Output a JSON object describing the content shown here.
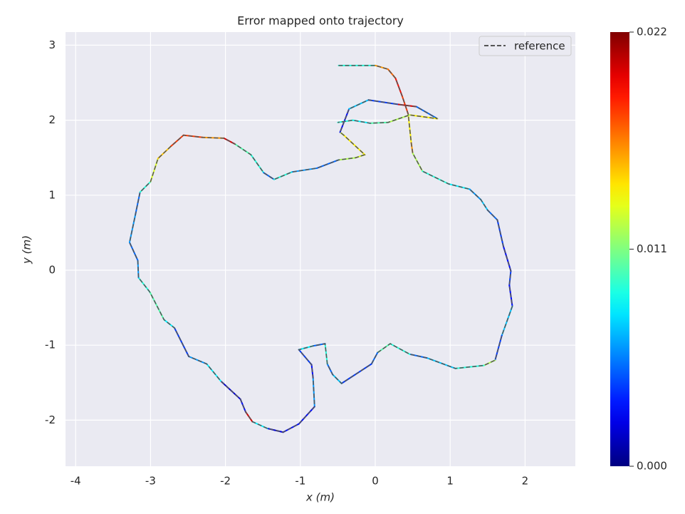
{
  "chart_data": {
    "type": "trajectory",
    "title": "Error mapped onto trajectory",
    "xlabel": "x (m)",
    "ylabel": "y (m)",
    "x": [
      -0.49,
      0,
      0.17,
      0.27,
      0.36,
      0.44,
      0.48,
      0.5,
      0.63,
      0.98,
      1.26,
      1.41,
      1.5,
      1.63,
      1.71,
      1.81,
      1.79,
      1.83,
      1.69,
      1.6,
      1.45,
      1.07,
      0.69,
      0.46,
      0.2,
      0.03,
      -0.05,
      -0.45,
      -0.57,
      -0.64,
      -0.67,
      -0.83,
      -1.02,
      -0.85,
      -0.83,
      -0.81,
      -1.02,
      -1.23,
      -1.44,
      -1.64,
      -1.73,
      -1.8,
      -2.06,
      -2.25,
      -2.49,
      -2.68,
      -2.82,
      -3.01,
      -3.16,
      -3.17,
      -3.28,
      -3.2,
      -3.14,
      -3,
      -2.9,
      -2.73,
      -2.56,
      -2.3,
      -2.02,
      -1.87,
      -1.66,
      -1.49,
      -1.35,
      -1.11,
      -0.78,
      -0.49,
      -0.26,
      -0.14,
      -0.42,
      -0.47,
      -0.35,
      -0.09,
      0.31,
      0.55,
      0.83,
      0.46,
      0.17,
      -0.07,
      -0.3,
      -0.5
    ],
    "y": [
      2.73,
      2.73,
      2.68,
      2.56,
      2.32,
      2.08,
      1.7,
      1.56,
      1.32,
      1.15,
      1.08,
      0.94,
      0.8,
      0.67,
      0.32,
      -0.01,
      -0.2,
      -0.48,
      -0.87,
      -1.2,
      -1.27,
      -1.31,
      -1.17,
      -1.12,
      -0.98,
      -1.1,
      -1.25,
      -1.51,
      -1.39,
      -1.25,
      -0.98,
      -1.01,
      -1.06,
      -1.26,
      -1.44,
      -1.82,
      -2.05,
      -2.16,
      -2.11,
      -2.02,
      -1.89,
      -1.72,
      -1.48,
      -1.25,
      -1.15,
      -0.77,
      -0.66,
      -0.29,
      -0.1,
      0.13,
      0.37,
      0.75,
      1.04,
      1.18,
      1.49,
      1.65,
      1.8,
      1.77,
      1.76,
      1.68,
      1.54,
      1.3,
      1.21,
      1.31,
      1.36,
      1.47,
      1.5,
      1.54,
      1.8,
      1.84,
      2.15,
      2.27,
      2.21,
      2.18,
      2.02,
      2.07,
      1.97,
      1.96,
      2,
      1.97
    ],
    "error": [
      0.009,
      0.016,
      0.017,
      0.019,
      0.018,
      0.014,
      0.016,
      0.012,
      0.009,
      0.008,
      0.006,
      0.007,
      0.005,
      0.004,
      0.003,
      0.004,
      0.003,
      0.007,
      0.004,
      0.012,
      0.009,
      0.007,
      0.005,
      0.009,
      0.01,
      0.005,
      0.004,
      0.007,
      0.005,
      0.009,
      0.005,
      0.008,
      0.004,
      0.003,
      0.006,
      0.003,
      0.003,
      0.002,
      0.008,
      0.02,
      0.003,
      0.002,
      0.008,
      0.006,
      0.004,
      0.008,
      0.01,
      0.009,
      0.006,
      0.005,
      0.006,
      0.005,
      0.009,
      0.013,
      0.015,
      0.018,
      0.018,
      0.016,
      0.02,
      0.01,
      0.009,
      0.005,
      0.009,
      0.006,
      0.005,
      0.012,
      0.013,
      0.014,
      0.013,
      0.003,
      0.007,
      0.004,
      0.02,
      0.005,
      0.014,
      0.012,
      0.01,
      0.008,
      0.009,
      0.013
    ],
    "reference": {
      "name": "reference",
      "color": "#555555"
    },
    "legend": "upper right",
    "xlim": [
      -4.135,
      2.671
    ],
    "ylim": [
      -2.614,
      3.175
    ],
    "xticks": [
      -4,
      -3,
      -2,
      -1,
      0,
      1,
      2
    ],
    "yticks": [
      -2,
      -1,
      0,
      1,
      2,
      3
    ],
    "grid": true,
    "colormap": "jet",
    "clim": [
      0,
      0.022
    ],
    "cticks": [
      {
        "value": 0,
        "label": "0.000"
      },
      {
        "value": 0.011,
        "label": "0.011"
      },
      {
        "value": 0.022,
        "label": "0.022"
      }
    ]
  }
}
